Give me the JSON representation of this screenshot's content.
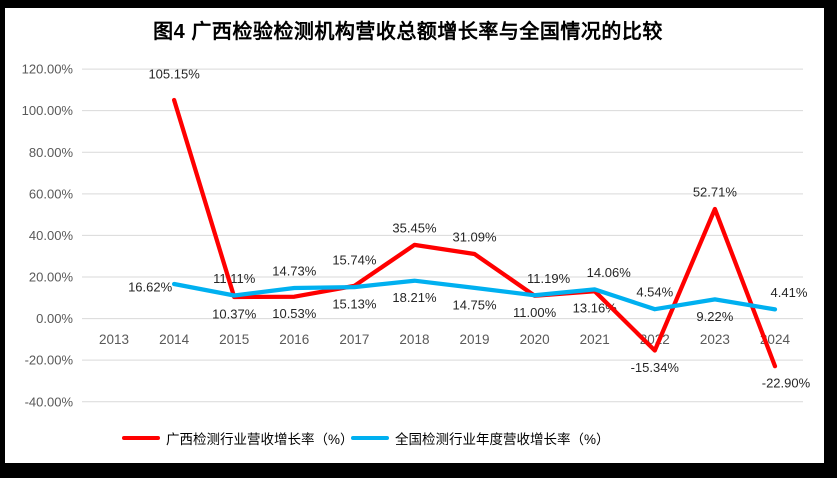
{
  "chart_data": {
    "type": "line",
    "title": "图4 广西检验检测机构营收总额增长率与全国情况的比较",
    "categories": [
      "2013",
      "2014",
      "2015",
      "2016",
      "2017",
      "2018",
      "2019",
      "2020",
      "2021",
      "2022",
      "2023",
      "2024"
    ],
    "series": [
      {
        "name": "广西检测行业营收增长率（%）",
        "color": "#FF0000",
        "values": [
          null,
          105.15,
          10.37,
          10.53,
          15.74,
          35.45,
          31.09,
          11.0,
          13.16,
          -15.34,
          52.71,
          -22.9
        ],
        "labels": [
          "",
          "105.15%",
          "10.37%",
          "10.53%",
          "15.74%",
          "35.45%",
          "31.09%",
          "11.00%",
          "13.16%",
          "-15.34%",
          "52.71%",
          "-22.90%"
        ],
        "label_positions": [
          null,
          "above-far",
          "below",
          "below",
          "above-far",
          "above",
          "above",
          "below",
          "below",
          "below",
          "above",
          "below-right"
        ]
      },
      {
        "name": "全国检测行业年度营收增长率（%）",
        "color": "#00B0F0",
        "values": [
          null,
          16.62,
          11.11,
          14.73,
          15.13,
          18.21,
          14.75,
          11.19,
          14.06,
          4.54,
          9.22,
          4.41
        ],
        "labels": [
          "",
          "16.62%",
          "11.11%",
          "14.73%",
          "15.13%",
          "18.21%",
          "14.75%",
          "11.19%",
          "14.06%",
          "4.54%",
          "9.22%",
          "4.41%"
        ],
        "label_positions": [
          null,
          "left",
          "above",
          "above",
          "below",
          "below",
          "below",
          "above-right",
          "above-right",
          "above",
          "below",
          "above-right"
        ]
      }
    ],
    "xlabel": "",
    "ylabel": "",
    "ylim": [
      -40,
      120
    ],
    "ytick_values": [
      120,
      100,
      80,
      60,
      40,
      20,
      0,
      -20,
      -40
    ],
    "ytick_labels": [
      "120.00%",
      "100.00%",
      "80.00%",
      "60.00%",
      "40.00%",
      "20.00%",
      "0.00%",
      "-20.00%",
      "-40.00%"
    ],
    "grid": true,
    "legend_position": "bottom",
    "colors": {
      "grid": "#D9D9D9",
      "axis_text": "#595959",
      "data_label": "#262626",
      "plot_background": "#FFFFFF",
      "frame": "#000000"
    }
  }
}
